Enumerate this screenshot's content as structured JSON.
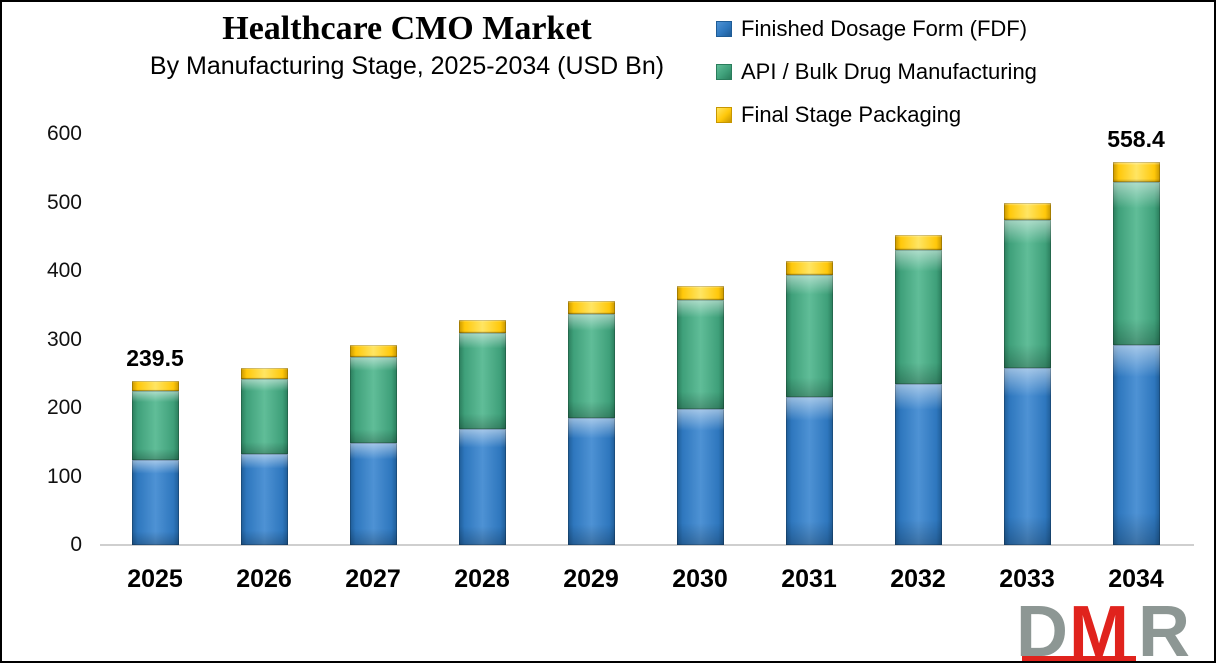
{
  "header": {
    "title": "Healthcare CMO Market",
    "subtitle": "By Manufacturing Stage, 2025-2034 (USD Bn)"
  },
  "chart_data": {
    "type": "bar",
    "stacked": true,
    "title": "Healthcare CMO Market",
    "subtitle": "By Manufacturing Stage, 2025-2034 (USD Bn)",
    "unit": "USD Bn",
    "categories": [
      "2025",
      "2026",
      "2027",
      "2028",
      "2029",
      "2030",
      "2031",
      "2032",
      "2033",
      "2034"
    ],
    "series": [
      {
        "name": "Finished Dosage Form (FDF)",
        "key": "fdf",
        "values": [
          124.0,
          133.5,
          149.5,
          170.0,
          185.5,
          199.0,
          216.0,
          235.5,
          259.0,
          291.5
        ],
        "color": {
          "base": "#2E77BE",
          "light": "#4E92D4",
          "dark": "#1F5C96"
        }
      },
      {
        "name": "API / Bulk Drug Manufacturing",
        "key": "api",
        "values": [
          101.0,
          109.5,
          125.5,
          140.0,
          152.0,
          159.0,
          178.0,
          195.5,
          215.0,
          238.9
        ],
        "color": {
          "base": "#3FA07A",
          "light": "#60BD98",
          "dark": "#2A7D5C"
        }
      },
      {
        "name": "Final Stage Packaging",
        "key": "packaging",
        "values": [
          14.5,
          15.5,
          16.5,
          19.0,
          18.5,
          20.0,
          20.5,
          22.0,
          25.0,
          28.0
        ],
        "color": {
          "base": "#FFC80A",
          "light": "#FFE563",
          "dark": "#C79600"
        }
      }
    ],
    "data_labels": [
      "239.5",
      "",
      "",
      "",
      "",
      "",
      "",
      "",
      "",
      "558.4"
    ],
    "totals": [
      239.5,
      258.5,
      291.5,
      329.0,
      356.0,
      378.0,
      414.5,
      453.0,
      499.0,
      558.4
    ],
    "ylim": [
      0,
      600
    ],
    "yticks": [
      0,
      100,
      200,
      300,
      400,
      500,
      600
    ],
    "xlabel": "",
    "ylabel": "",
    "grid": false,
    "legend_position": "top-right"
  },
  "logo": {
    "text": "DMR",
    "gray": "#8D9794",
    "red": "#E0231D"
  }
}
